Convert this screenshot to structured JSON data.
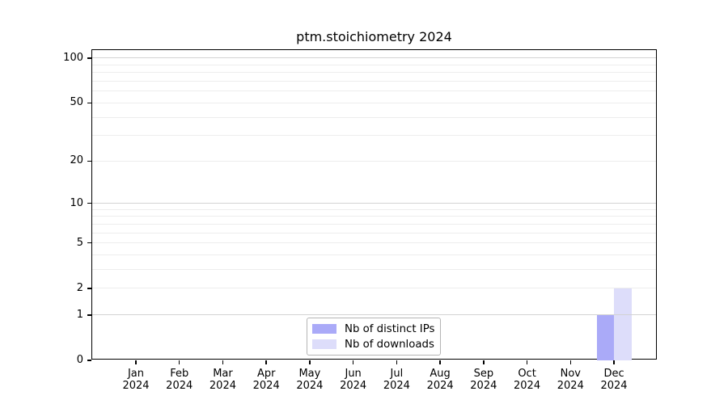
{
  "title": "ptm.stoichiometry 2024",
  "chart_data": {
    "type": "bar",
    "title": "ptm.stoichiometry 2024",
    "months": [
      "Jan",
      "Feb",
      "Mar",
      "Apr",
      "May",
      "Jun",
      "Jul",
      "Aug",
      "Sep",
      "Oct",
      "Nov",
      "Dec"
    ],
    "year": "2024",
    "categories": [
      "Jan 2024",
      "Feb 2024",
      "Mar 2024",
      "Apr 2024",
      "May 2024",
      "Jun 2024",
      "Jul 2024",
      "Aug 2024",
      "Sep 2024",
      "Oct 2024",
      "Nov 2024",
      "Dec 2024"
    ],
    "series": [
      {
        "name": "Nb of distinct IPs",
        "color": "#aaaaf8",
        "values": [
          0,
          0,
          0,
          0,
          0,
          0,
          0,
          0,
          0,
          0,
          0,
          1
        ]
      },
      {
        "name": "Nb of downloads",
        "color": "#ddddfa",
        "values": [
          0,
          0,
          0,
          0,
          0,
          0,
          0,
          0,
          0,
          0,
          0,
          2
        ]
      }
    ],
    "yscale": "log1p",
    "ylim": [
      0,
      115
    ],
    "yticks": [
      0,
      1,
      2,
      5,
      10,
      20,
      50,
      100
    ],
    "gridlines": {
      "major": [
        1,
        10,
        100
      ],
      "minor": [
        2,
        3,
        4,
        5,
        6,
        7,
        8,
        9,
        20,
        30,
        40,
        50,
        60,
        70,
        80,
        90
      ]
    },
    "grid": true,
    "legend_position": "lower center",
    "colors": {
      "major_grid": "#d3d3d3",
      "minor_grid": "#ededed",
      "axis": "#000000",
      "background": "#ffffff"
    }
  },
  "legend": {
    "items": [
      {
        "label": "Nb of distinct IPs",
        "color": "#aaaaf8"
      },
      {
        "label": "Nb of downloads",
        "color": "#ddddfa"
      }
    ]
  }
}
